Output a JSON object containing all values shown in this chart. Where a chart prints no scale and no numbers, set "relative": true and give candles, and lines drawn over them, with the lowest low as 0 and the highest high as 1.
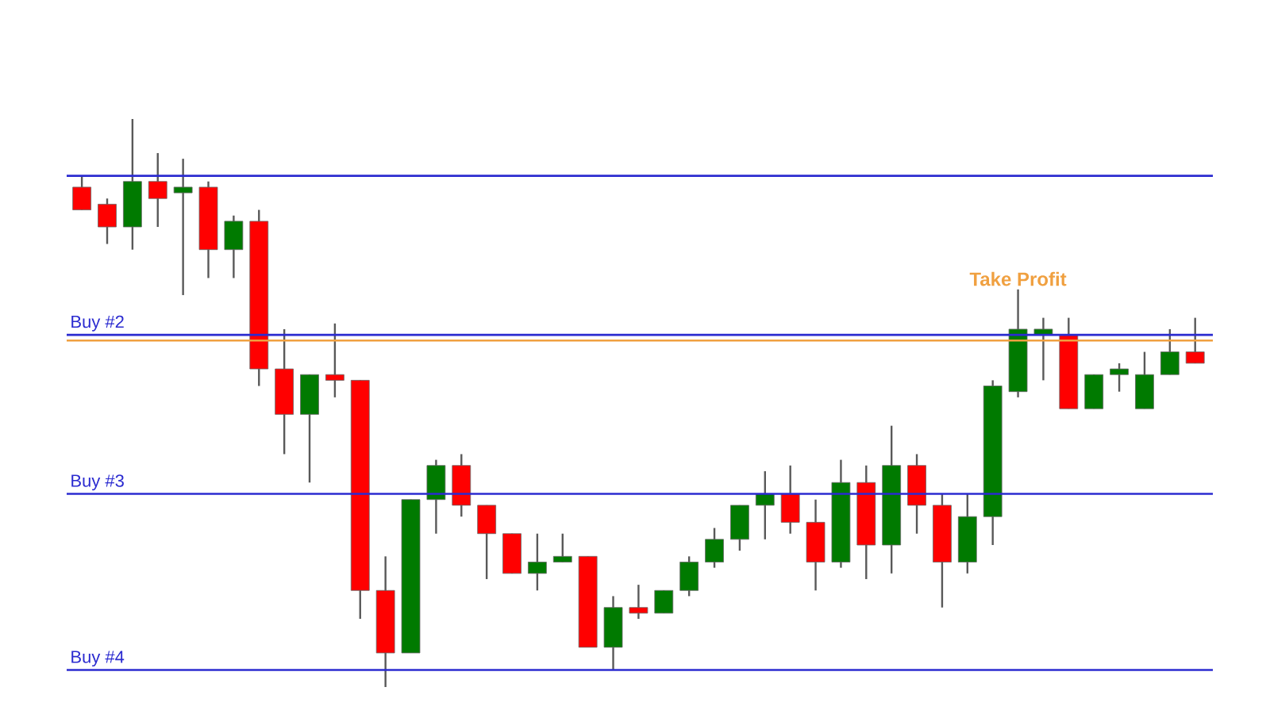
{
  "chart_data": {
    "type": "candlestick",
    "relative": true,
    "categories": [
      null,
      null,
      null,
      null,
      null,
      null,
      null,
      null,
      null,
      null,
      null,
      null,
      null,
      null,
      null,
      null,
      null,
      null,
      null,
      null,
      null,
      null,
      null,
      null,
      null,
      null,
      null,
      null,
      null,
      null,
      null,
      null,
      null,
      null,
      null,
      null,
      null,
      null,
      null,
      null,
      null,
      null,
      null,
      null,
      null
    ],
    "ohlc": [
      [
        0.88,
        0.9,
        0.84,
        0.84
      ],
      [
        0.85,
        0.86,
        0.78,
        0.81
      ],
      [
        0.81,
        1.0,
        0.77,
        0.89
      ],
      [
        0.89,
        0.94,
        0.81,
        0.86
      ],
      [
        0.87,
        0.93,
        0.69,
        0.88
      ],
      [
        0.88,
        0.89,
        0.72,
        0.77
      ],
      [
        0.77,
        0.83,
        0.72,
        0.82
      ],
      [
        0.82,
        0.84,
        0.53,
        0.56
      ],
      [
        0.56,
        0.63,
        0.41,
        0.48
      ],
      [
        0.48,
        0.55,
        0.36,
        0.55
      ],
      [
        0.55,
        0.64,
        0.51,
        0.54
      ],
      [
        0.54,
        0.54,
        0.12,
        0.17
      ],
      [
        0.17,
        0.23,
        0.0,
        0.06
      ],
      [
        0.06,
        0.33,
        0.06,
        0.33
      ],
      [
        0.33,
        0.4,
        0.27,
        0.39
      ],
      [
        0.39,
        0.41,
        0.3,
        0.32
      ],
      [
        0.32,
        0.32,
        0.19,
        0.27
      ],
      [
        0.27,
        0.27,
        0.2,
        0.2
      ],
      [
        0.2,
        0.27,
        0.17,
        0.22
      ],
      [
        0.22,
        0.27,
        0.22,
        0.23
      ],
      [
        0.23,
        0.23,
        0.07,
        0.07
      ],
      [
        0.07,
        0.16,
        0.03,
        0.14
      ],
      [
        0.14,
        0.18,
        0.12,
        0.13
      ],
      [
        0.13,
        0.17,
        0.13,
        0.17
      ],
      [
        0.17,
        0.23,
        0.16,
        0.22
      ],
      [
        0.22,
        0.28,
        0.21,
        0.26
      ],
      [
        0.26,
        0.32,
        0.24,
        0.32
      ],
      [
        0.32,
        0.38,
        0.26,
        0.34
      ],
      [
        0.34,
        0.39,
        0.27,
        0.29
      ],
      [
        0.29,
        0.33,
        0.17,
        0.22
      ],
      [
        0.22,
        0.4,
        0.21,
        0.36
      ],
      [
        0.36,
        0.39,
        0.19,
        0.25
      ],
      [
        0.25,
        0.46,
        0.2,
        0.39
      ],
      [
        0.39,
        0.41,
        0.27,
        0.32
      ],
      [
        0.32,
        0.34,
        0.14,
        0.22
      ],
      [
        0.22,
        0.34,
        0.2,
        0.3
      ],
      [
        0.3,
        0.54,
        0.25,
        0.53
      ],
      [
        0.52,
        0.7,
        0.51,
        0.63
      ],
      [
        0.62,
        0.65,
        0.54,
        0.63
      ],
      [
        0.62,
        0.65,
        0.49,
        0.49
      ],
      [
        0.49,
        0.55,
        0.49,
        0.55
      ],
      [
        0.55,
        0.57,
        0.52,
        0.56
      ],
      [
        0.49,
        0.59,
        0.49,
        0.55
      ],
      [
        0.55,
        0.63,
        0.55,
        0.59
      ],
      [
        0.59,
        0.65,
        0.57,
        0.57
      ]
    ],
    "colors": [
      "#ff0000",
      "#ff0000",
      "#007a00",
      "#ff0000",
      "#007a00",
      "#ff0000",
      "#007a00",
      "#ff0000",
      "#ff0000",
      "#007a00",
      "#ff0000",
      "#ff0000",
      "#ff0000",
      "#007a00",
      "#007a00",
      "#ff0000",
      "#ff0000",
      "#ff0000",
      "#007a00",
      "#007a00",
      "#ff0000",
      "#007a00",
      "#ff0000",
      "#007a00",
      "#007a00",
      "#007a00",
      "#007a00",
      "#007a00",
      "#ff0000",
      "#ff0000",
      "#007a00",
      "#ff0000",
      "#007a00",
      "#ff0000",
      "#ff0000",
      "#007a00",
      "#007a00",
      "#007a00",
      "#007a00",
      "#ff0000",
      "#007a00",
      "#007a00",
      "#007a00",
      "#007a00",
      "#ff0000"
    ],
    "ref_lines": [
      {
        "axis": "y",
        "value": 0.9,
        "color": "#2b2bd0"
      },
      {
        "axis": "y",
        "value": 0.62,
        "label": "Buy #2",
        "color": "#2b2bd0"
      },
      {
        "axis": "y",
        "value": 0.34,
        "label": "Buy #3",
        "color": "#2b2bd0"
      },
      {
        "axis": "y",
        "value": 0.03,
        "label": "Buy #4",
        "color": "#2b2bd0"
      },
      {
        "axis": "y",
        "value": 0.61,
        "label": "Take Profit",
        "color": "#f0a040"
      }
    ]
  }
}
